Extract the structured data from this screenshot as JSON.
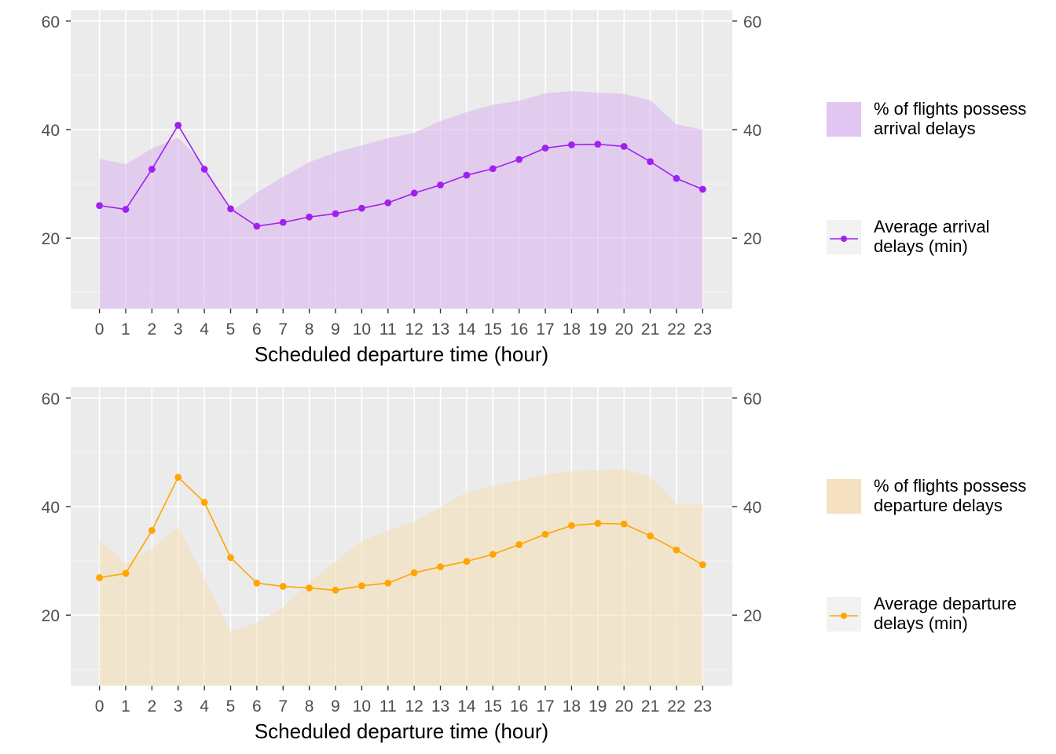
{
  "chart_data": [
    {
      "type": "area+line",
      "xlabel": "Scheduled departure time (hour)",
      "ylabel": "",
      "ylim": [
        7,
        62
      ],
      "y_ticks": [
        20,
        40,
        60
      ],
      "secondary_y_ticks": [
        20,
        40,
        60
      ],
      "grid": true,
      "legend_position": "right",
      "categories": [
        "0",
        "1",
        "2",
        "3",
        "4",
        "5",
        "6",
        "7",
        "8",
        "9",
        "10",
        "11",
        "12",
        "13",
        "14",
        "15",
        "16",
        "17",
        "18",
        "19",
        "20",
        "21",
        "22",
        "23"
      ],
      "series": [
        {
          "name": "% of flights possess\narrival delays",
          "kind": "area",
          "color": "#d9b3ef",
          "values": [
            34.6,
            33.6,
            36.5,
            38.5,
            33.5,
            24.8,
            28.4,
            31.3,
            34.0,
            35.8,
            37.1,
            38.4,
            39.4,
            41.6,
            43.2,
            44.6,
            45.3,
            46.7,
            47.1,
            46.8,
            46.6,
            45.4,
            41.0,
            40.0
          ]
        },
        {
          "name": "Average arrival\ndelays (min)",
          "kind": "line",
          "color": "#a020f0",
          "values": [
            26.0,
            25.3,
            32.7,
            40.8,
            32.7,
            25.4,
            22.2,
            22.9,
            23.9,
            24.5,
            25.5,
            26.5,
            28.3,
            29.8,
            31.6,
            32.8,
            34.5,
            36.6,
            37.2,
            37.3,
            36.9,
            34.1,
            31.0,
            29.0
          ]
        }
      ]
    },
    {
      "type": "area+line",
      "xlabel": "Scheduled departure time (hour)",
      "ylabel": "",
      "ylim": [
        7,
        62
      ],
      "y_ticks": [
        20,
        40,
        60
      ],
      "secondary_y_ticks": [
        20,
        40,
        60
      ],
      "grid": true,
      "legend_position": "right",
      "categories": [
        "0",
        "1",
        "2",
        "3",
        "4",
        "5",
        "6",
        "7",
        "8",
        "9",
        "10",
        "11",
        "12",
        "13",
        "14",
        "15",
        "16",
        "17",
        "18",
        "19",
        "20",
        "21",
        "22",
        "23"
      ],
      "series": [
        {
          "name": "% of flights possess\ndeparture delays",
          "kind": "area",
          "color": "#f5deb3",
          "values": [
            33.8,
            29.5,
            32.3,
            36.3,
            26.8,
            17.0,
            18.6,
            21.5,
            26.0,
            30.0,
            33.6,
            35.6,
            37.3,
            39.9,
            42.7,
            43.8,
            44.8,
            45.9,
            46.5,
            46.7,
            46.9,
            45.5,
            40.5,
            40.5
          ]
        },
        {
          "name": "Average departure\ndelays (min)",
          "kind": "line",
          "color": "#ffa500",
          "values": [
            26.9,
            27.7,
            35.6,
            45.4,
            40.8,
            30.6,
            25.9,
            25.3,
            25.0,
            24.6,
            25.4,
            25.9,
            27.8,
            28.9,
            29.9,
            31.2,
            33.0,
            34.9,
            36.5,
            36.9,
            36.8,
            34.6,
            32.0,
            29.3
          ]
        }
      ]
    }
  ]
}
